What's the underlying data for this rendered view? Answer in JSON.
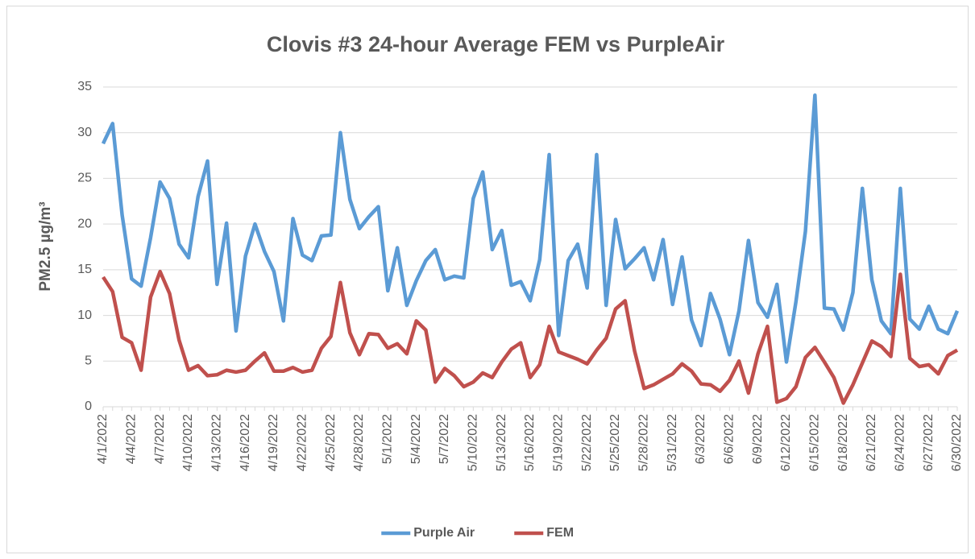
{
  "chart_data": {
    "type": "line",
    "title": "Clovis #3 24-hour Average FEM vs PurpleAir",
    "y_label": "PM2.5 µg/m³",
    "categories": [
      "4/1/2022",
      null,
      null,
      "4/4/2022",
      null,
      null,
      "4/7/2022",
      null,
      null,
      "4/10/2022",
      null,
      null,
      "4/13/2022",
      null,
      null,
      "4/16/2022",
      null,
      null,
      "4/19/2022",
      null,
      null,
      "4/22/2022",
      null,
      null,
      "4/25/2022",
      null,
      null,
      "4/28/2022",
      null,
      null,
      "5/1/2022",
      null,
      null,
      "5/4/2022",
      null,
      null,
      "5/7/2022",
      null,
      null,
      "5/10/2022",
      null,
      null,
      "5/13/2022",
      null,
      null,
      "5/16/2022",
      null,
      null,
      "5/19/2022",
      null,
      null,
      "5/22/2022",
      null,
      null,
      "5/25/2022",
      null,
      null,
      "5/28/2022",
      null,
      null,
      "5/31/2022",
      null,
      null,
      "6/3/2022",
      null,
      null,
      "6/6/2022",
      null,
      null,
      "6/9/2022",
      null,
      null,
      "6/12/2022",
      null,
      null,
      "6/15/2022",
      null,
      null,
      "6/18/2022",
      null,
      null,
      "6/21/2022",
      null,
      null,
      "6/24/2022",
      null,
      null,
      "6/27/2022",
      null,
      null,
      "6/30/2022"
    ],
    "series": [
      {
        "name": "Purple Air",
        "color": "#5b9bd5",
        "values": [
          28.8,
          31,
          21,
          14,
          13.2,
          18.5,
          24.6,
          22.8,
          17.8,
          16.3,
          23,
          26.9,
          13.4,
          20.1,
          8.3,
          16.5,
          20,
          17,
          14.8,
          9.4,
          20.6,
          16.6,
          16,
          18.7,
          18.8,
          30,
          22.7,
          19.5,
          20.8,
          21.9,
          12.7,
          17.4,
          11.1,
          13.8,
          16,
          17.2,
          13.9,
          14.3,
          14.1,
          22.8,
          25.7,
          17.2,
          19.3,
          13.3,
          13.7,
          11.6,
          16.1,
          27.6,
          7.8,
          16,
          17.8,
          13,
          27.6,
          11.1,
          20.5,
          15.1,
          16.2,
          17.4,
          13.9,
          18.3,
          11.2,
          16.4,
          9.5,
          6.7,
          12.4,
          9.6,
          5.7,
          10.5,
          18.2,
          11.4,
          9.8,
          13.4,
          4.9,
          11.5,
          19.2,
          34.1,
          10.8,
          10.7,
          8.4,
          12.5,
          23.9,
          13.9,
          9.4,
          8,
          23.9,
          9.6,
          8.5,
          11,
          8.5,
          8,
          10.5
        ]
      },
      {
        "name": "FEM",
        "color": "#c0504d",
        "values": [
          14.2,
          12.6,
          7.6,
          7,
          4,
          12,
          14.8,
          12.4,
          7.3,
          4,
          4.5,
          3.4,
          3.5,
          4,
          3.8,
          4,
          5,
          5.9,
          3.9,
          3.9,
          4.3,
          3.8,
          4,
          6.4,
          7.7,
          13.6,
          8.1,
          5.7,
          8,
          7.9,
          6.4,
          6.9,
          5.8,
          9.4,
          8.4,
          2.7,
          4.2,
          3.4,
          2.2,
          2.7,
          3.7,
          3.2,
          4.9,
          6.3,
          7,
          3.2,
          4.6,
          8.8,
          6,
          5.6,
          5.2,
          4.7,
          6.2,
          7.5,
          10.7,
          11.6,
          6.1,
          2,
          2.4,
          3,
          3.6,
          4.7,
          3.9,
          2.5,
          2.4,
          1.7,
          2.9,
          5,
          1.5,
          5.8,
          8.8,
          0.5,
          0.9,
          2.2,
          5.4,
          6.5,
          4.9,
          3.2,
          0.4,
          2.4,
          4.8,
          7.2,
          6.6,
          5.5,
          14.5,
          5.3,
          4.4,
          4.6,
          3.6,
          5.6,
          6.2
        ]
      }
    ],
    "ylim": [
      0,
      35
    ],
    "yticks": [
      0,
      5,
      10,
      15,
      20,
      25,
      30,
      35
    ],
    "grid": true,
    "legend": "bottom"
  }
}
